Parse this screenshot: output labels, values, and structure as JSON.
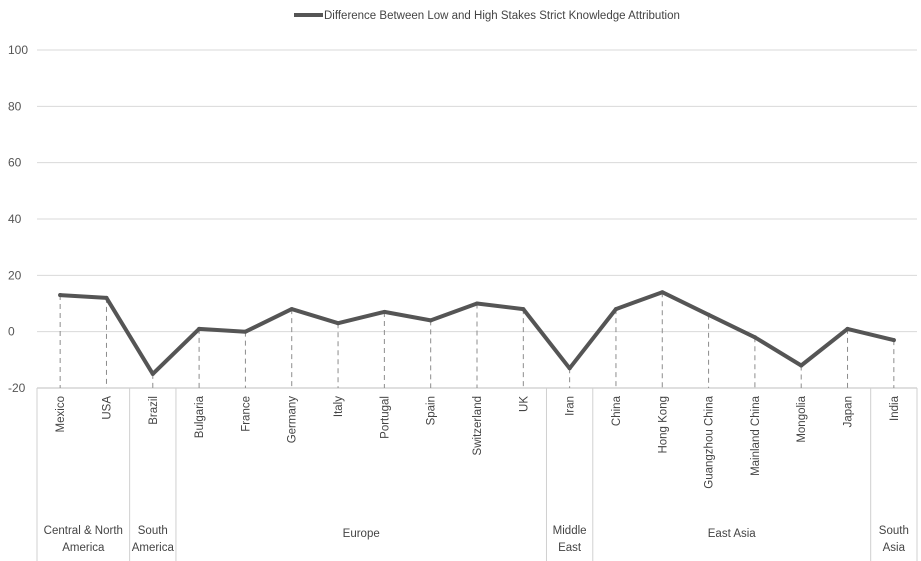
{
  "chart_data": {
    "type": "line",
    "legend": {
      "position": "top",
      "entries": [
        "Difference Between Low and High Stakes Strict Knowledge Attribution"
      ]
    },
    "ylim": [
      -20,
      100
    ],
    "yticks": [
      -20,
      0,
      20,
      40,
      60,
      80,
      100
    ],
    "grid": true,
    "categories": [
      "Mexico",
      "USA",
      "Brazil",
      "Bulgaria",
      "France",
      "Germany",
      "Italy",
      "Portugal",
      "Spain",
      "Switzerland",
      "UK",
      "Iran",
      "China",
      "Hong Kong",
      "Guangzhou China",
      "Mainland China",
      "Mongolia",
      "Japan",
      "India"
    ],
    "series": [
      {
        "name": "Difference Between Low and High Stakes Strict Knowledge Attribution",
        "values": [
          13,
          12,
          -15,
          1,
          0,
          8,
          3,
          7,
          4,
          10,
          8,
          -13,
          8,
          14,
          6,
          -2,
          -12,
          1,
          -3
        ]
      }
    ],
    "groups": [
      {
        "label": [
          "Central & North",
          "America"
        ],
        "count": 2
      },
      {
        "label": [
          "South",
          "America"
        ],
        "count": 1
      },
      {
        "label": [
          "Europe"
        ],
        "count": 8
      },
      {
        "label": [
          "Middle",
          "East"
        ],
        "count": 1
      },
      {
        "label": [
          "East Asia"
        ],
        "count": 6
      },
      {
        "label": [
          "South",
          "Asia"
        ],
        "count": 1
      }
    ],
    "colors": {
      "line": "#555555",
      "grid": "#d9d9d9",
      "drop": "#8c8c8c"
    }
  }
}
